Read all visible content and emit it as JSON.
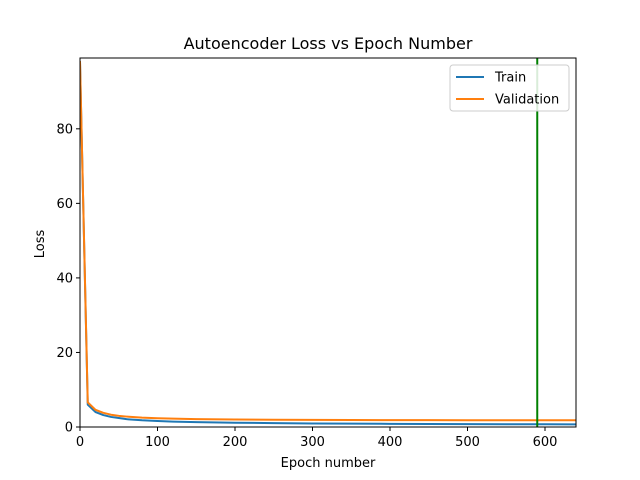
{
  "chart_data": {
    "type": "line",
    "title": "Autoencoder Loss vs Epoch Number",
    "xlabel": "Epoch number",
    "ylabel": "Loss",
    "xlim": [
      0,
      640
    ],
    "ylim": [
      0,
      99
    ],
    "xticks": [
      0,
      100,
      200,
      300,
      400,
      500,
      600
    ],
    "yticks": [
      0,
      20,
      40,
      60,
      80
    ],
    "grid": false,
    "legend_position": "top-right",
    "x": [
      0,
      10,
      20,
      30,
      40,
      50,
      60,
      80,
      100,
      120,
      150,
      200,
      250,
      300,
      350,
      400,
      450,
      500,
      550,
      600,
      640
    ],
    "series": [
      {
        "name": "Train",
        "color": "#1f77b4",
        "values": [
          98,
          6.0,
          4.0,
          3.2,
          2.7,
          2.4,
          2.1,
          1.8,
          1.6,
          1.45,
          1.3,
          1.15,
          1.05,
          0.95,
          0.9,
          0.85,
          0.8,
          0.78,
          0.75,
          0.73,
          0.72
        ]
      },
      {
        "name": "Validation",
        "color": "#ff7f0e",
        "values": [
          98,
          6.6,
          4.6,
          3.8,
          3.3,
          3.0,
          2.8,
          2.5,
          2.35,
          2.25,
          2.1,
          2.0,
          1.95,
          1.9,
          1.88,
          1.85,
          1.83,
          1.82,
          1.8,
          1.8,
          1.8
        ]
      }
    ],
    "vline": {
      "x": 590,
      "color": "#008000"
    }
  }
}
